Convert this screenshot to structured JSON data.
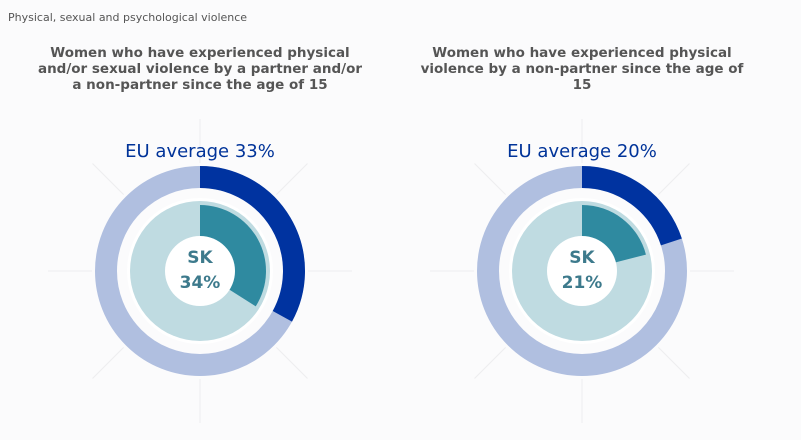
{
  "header": {
    "section": "Physical, sexual and psychological violence"
  },
  "colors": {
    "eu_track": "#b0bfe0",
    "eu_value": "#0033a0",
    "country_track": "#bfdbe1",
    "country_value": "#2f8aa0",
    "center_text": "#3d7a8c",
    "eu_label": "#003399",
    "guide_lines": "#ededf0"
  },
  "chart_data": [
    {
      "type": "pie",
      "title": "Women who have experienced physical and/or sexual violence by a partner and/or a non-partner since the age of 15",
      "eu_label": "EU average 33%",
      "eu_value": 33,
      "country_code": "SK",
      "country_label": "34%",
      "country_value": 34
    },
    {
      "type": "pie",
      "title": "Women who have experienced physical violence by a non-partner since the age of 15",
      "eu_label": "EU average 20%",
      "eu_value": 20,
      "country_code": "SK",
      "country_label": "21%",
      "country_value": 21
    }
  ]
}
